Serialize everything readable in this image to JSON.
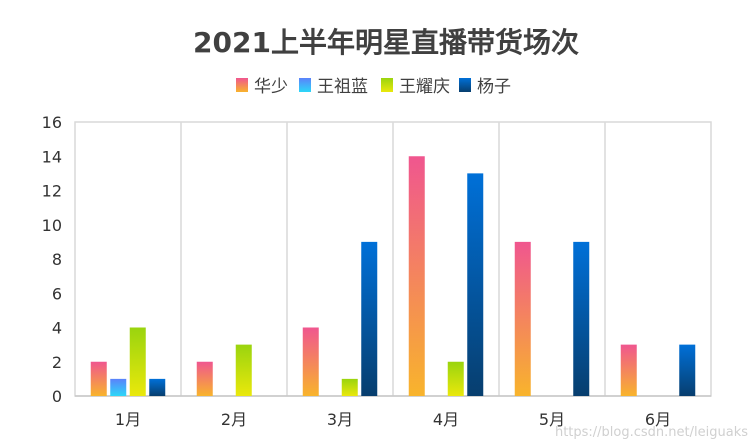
{
  "chart_data": {
    "type": "bar",
    "title": "2021上半年明星直播带货场次",
    "categories": [
      "1月",
      "2月",
      "3月",
      "4月",
      "5月",
      "6月"
    ],
    "series": [
      {
        "name": "华少",
        "values": [
          2,
          2,
          4,
          14,
          9,
          3
        ],
        "gradient": [
          "#f0568f",
          "#f8b42c"
        ]
      },
      {
        "name": "王祖蓝",
        "values": [
          1,
          0,
          0,
          0,
          0,
          0
        ],
        "gradient": [
          "#5b82fb",
          "#2cd7f8"
        ]
      },
      {
        "name": "王耀庆",
        "values": [
          4,
          3,
          1,
          2,
          0,
          0
        ],
        "gradient": [
          "#9ad40e",
          "#eae80c"
        ]
      },
      {
        "name": "杨子",
        "values": [
          1,
          0,
          9,
          13,
          9,
          3
        ],
        "gradient": [
          "#0070d8",
          "#073e6e"
        ]
      }
    ],
    "ylim": [
      0,
      16
    ],
    "yticks": [
      0,
      2,
      4,
      6,
      8,
      10,
      12,
      14,
      16
    ],
    "xlabel": "",
    "ylabel": "",
    "grid": "vertical category separators",
    "legend_position": "top-center"
  },
  "watermark": "https://blog.csdn.net/leiguaks"
}
